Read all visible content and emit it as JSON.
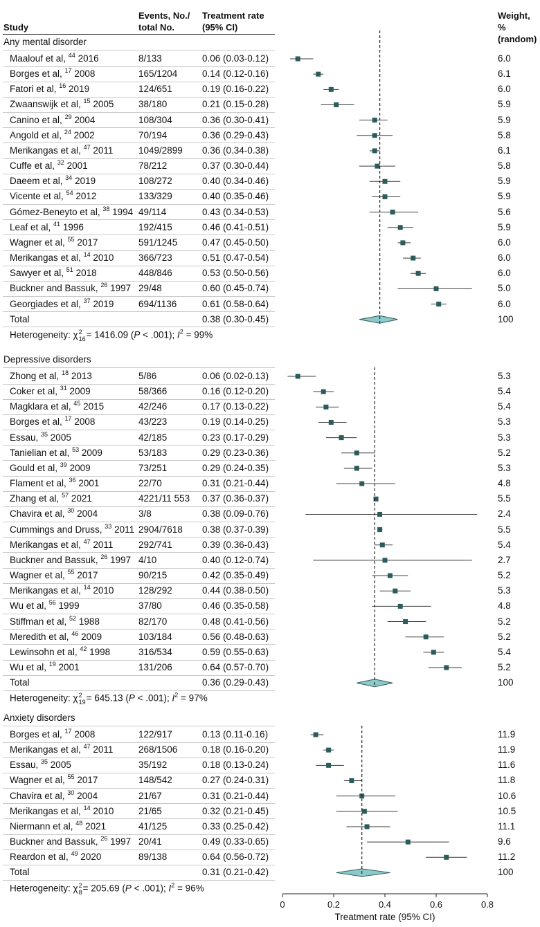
{
  "header": {
    "study": "Study",
    "events_line1": "Events, No./",
    "events_line2": "total No.",
    "rate_line1": "Treatment rate",
    "rate_line2": "(95% CI)",
    "weight_line1": "Weight, %",
    "weight_line2": "(random)"
  },
  "chart_data": {
    "type": "forest",
    "xlabel": "Treatment rate (95% CI)",
    "xlim": [
      0,
      0.8
    ],
    "xticks": [
      0,
      0.2,
      0.4,
      0.6,
      0.8
    ],
    "xtick_labels": [
      "0",
      "0.2",
      "0.4",
      "0.6",
      "0.8"
    ],
    "colors": {
      "marker": "#2b5b5b",
      "diamond_fill": "#8ec9c9",
      "diamond_stroke": "#2b5b5b"
    },
    "sections": [
      {
        "title": "Any mental disorder",
        "studies": [
          {
            "author": "Maalouf et al,",
            "ref": "44",
            "year": "2016",
            "events": "8/133",
            "rate": "0.06 (0.03-0.12)",
            "est": 0.06,
            "lo": 0.03,
            "hi": 0.12,
            "weight": "6.0"
          },
          {
            "author": "Borges et al,",
            "ref": "17",
            "year": "2008",
            "events": "165/1204",
            "rate": "0.14 (0.12-0.16)",
            "est": 0.14,
            "lo": 0.12,
            "hi": 0.16,
            "weight": "6.1"
          },
          {
            "author": "Fatori et al,",
            "ref": "16",
            "year": "2019",
            "events": "124/651",
            "rate": "0.19 (0.16-0.22)",
            "est": 0.19,
            "lo": 0.16,
            "hi": 0.22,
            "weight": "6.0"
          },
          {
            "author": "Zwaanswijk et al,",
            "ref": "15",
            "year": "2005",
            "events": "38/180",
            "rate": "0.21 (0.15-0.28)",
            "est": 0.21,
            "lo": 0.15,
            "hi": 0.28,
            "weight": "5.9"
          },
          {
            "author": "Canino et al,",
            "ref": "29",
            "year": "2004",
            "events": "108/304",
            "rate": "0.36 (0.30-0.41)",
            "est": 0.36,
            "lo": 0.3,
            "hi": 0.41,
            "weight": "5.9"
          },
          {
            "author": "Angold et al,",
            "ref": "24",
            "year": "2002",
            "events": "70/194",
            "rate": "0.36 (0.29-0.43)",
            "est": 0.36,
            "lo": 0.29,
            "hi": 0.43,
            "weight": "5.8"
          },
          {
            "author": "Merikangas et al,",
            "ref": "47",
            "year": "2011",
            "events": "1049/2899",
            "rate": "0.36 (0.34-0.38)",
            "est": 0.36,
            "lo": 0.34,
            "hi": 0.38,
            "weight": "6.1"
          },
          {
            "author": "Cuffe et al,",
            "ref": "32",
            "year": "2001",
            "events": "78/212",
            "rate": "0.37 (0.30-0.44)",
            "est": 0.37,
            "lo": 0.3,
            "hi": 0.44,
            "weight": "5.8"
          },
          {
            "author": "Daeem et al,",
            "ref": "34",
            "year": "2019",
            "events": "108/272",
            "rate": "0.40 (0.34-0.46)",
            "est": 0.4,
            "lo": 0.34,
            "hi": 0.46,
            "weight": "5.9"
          },
          {
            "author": "Vicente et al,",
            "ref": "54",
            "year": "2012",
            "events": "133/329",
            "rate": "0.40 (0.35-0.46)",
            "est": 0.4,
            "lo": 0.35,
            "hi": 0.46,
            "weight": "5.9"
          },
          {
            "author": "Gómez-Beneyto et al,",
            "ref": "38",
            "year": "1994",
            "events": "49/114",
            "rate": "0.43 (0.34-0.53)",
            "est": 0.43,
            "lo": 0.34,
            "hi": 0.53,
            "weight": "5.6"
          },
          {
            "author": "Leaf et al,",
            "ref": "41",
            "year": "1996",
            "events": "192/415",
            "rate": "0.46 (0.41-0.51)",
            "est": 0.46,
            "lo": 0.41,
            "hi": 0.51,
            "weight": "5.9"
          },
          {
            "author": "Wagner et al,",
            "ref": "55",
            "year": "2017",
            "events": "591/1245",
            "rate": "0.47 (0.45-0.50)",
            "est": 0.47,
            "lo": 0.45,
            "hi": 0.5,
            "weight": "6.0"
          },
          {
            "author": "Merikangas et al,",
            "ref": "14",
            "year": "2010",
            "events": "366/723",
            "rate": "0.51 (0.47-0.54)",
            "est": 0.51,
            "lo": 0.47,
            "hi": 0.54,
            "weight": "6.0"
          },
          {
            "author": "Sawyer et al,",
            "ref": "51",
            "year": "2018",
            "events": "448/846",
            "rate": "0.53 (0.50-0.56)",
            "est": 0.53,
            "lo": 0.5,
            "hi": 0.56,
            "weight": "6.0"
          },
          {
            "author": "Buckner and Bassuk,",
            "ref": "26",
            "year": "1997",
            "events": "29/48",
            "rate": "0.60 (0.45-0.74)",
            "est": 0.6,
            "lo": 0.45,
            "hi": 0.74,
            "weight": "5.0"
          },
          {
            "author": "Georgiades et al,",
            "ref": "37",
            "year": "2019",
            "events": "694/1136",
            "rate": "0.61 (0.58-0.64)",
            "est": 0.61,
            "lo": 0.58,
            "hi": 0.64,
            "weight": "6.0"
          }
        ],
        "total": {
          "label": "Total",
          "rate": "0.38 (0.30-0.45)",
          "est": 0.38,
          "lo": 0.3,
          "hi": 0.45,
          "weight": "100"
        },
        "het": {
          "prefix": "Heterogeneity: χ",
          "sup": "2",
          "sub": "16",
          "stat": "= 1416.09 (",
          "p": "P",
          "p_rest": " < .001); ",
          "i": "I",
          "i_sup": "2",
          "i_rest": " = 99%"
        }
      },
      {
        "title": "Depressive disorders",
        "studies": [
          {
            "author": "Zhong et al,",
            "ref": "18",
            "year": "2013",
            "events": "5/86",
            "rate": "0.06 (0.02-0.13)",
            "est": 0.06,
            "lo": 0.02,
            "hi": 0.13,
            "weight": "5.3"
          },
          {
            "author": "Coker et al,",
            "ref": "31",
            "year": "2009",
            "events": "58/366",
            "rate": "0.16 (0.12-0.20)",
            "est": 0.16,
            "lo": 0.12,
            "hi": 0.2,
            "weight": "5.4"
          },
          {
            "author": "Magklara et al,",
            "ref": "45",
            "year": "2015",
            "events": "42/246",
            "rate": "0.17 (0.13-0.22)",
            "est": 0.17,
            "lo": 0.13,
            "hi": 0.22,
            "weight": "5.4"
          },
          {
            "author": "Borges et al,",
            "ref": "17",
            "year": "2008",
            "events": "43/223",
            "rate": "0.19 (0.14-0.25)",
            "est": 0.19,
            "lo": 0.14,
            "hi": 0.25,
            "weight": "5.3"
          },
          {
            "author": "Essau,",
            "ref": "35",
            "year": "2005",
            "events": "42/185",
            "rate": "0.23 (0.17-0.29)",
            "est": 0.23,
            "lo": 0.17,
            "hi": 0.29,
            "weight": "5.3"
          },
          {
            "author": "Tanielian et al,",
            "ref": "53",
            "year": "2009",
            "events": "53/183",
            "rate": "0.29 (0.23-0.36)",
            "est": 0.29,
            "lo": 0.23,
            "hi": 0.36,
            "weight": "5.2"
          },
          {
            "author": "Gould et al,",
            "ref": "39",
            "year": "2009",
            "events": "73/251",
            "rate": "0.29 (0.24-0.35)",
            "est": 0.29,
            "lo": 0.24,
            "hi": 0.35,
            "weight": "5.3"
          },
          {
            "author": "Flament et al,",
            "ref": "36",
            "year": "2001",
            "events": "22/70",
            "rate": "0.31 (0.21-0.44)",
            "est": 0.31,
            "lo": 0.21,
            "hi": 0.44,
            "weight": "4.8"
          },
          {
            "author": "Zhang et al,",
            "ref": "57",
            "year": "2021",
            "events": "4221/11 553",
            "rate": "0.37 (0.36-0.37)",
            "est": 0.365,
            "lo": 0.36,
            "hi": 0.37,
            "weight": "5.5"
          },
          {
            "author": "Chavira et al,",
            "ref": "30",
            "year": "2004",
            "events": "3/8",
            "rate": "0.38 (0.09-0.76)",
            "est": 0.38,
            "lo": 0.09,
            "hi": 0.76,
            "weight": "2.4"
          },
          {
            "author": "Cummings and Druss,",
            "ref": "33",
            "year": "2011",
            "events": "2904/7618",
            "rate": "0.38 (0.37-0.39)",
            "est": 0.38,
            "lo": 0.37,
            "hi": 0.39,
            "weight": "5.5"
          },
          {
            "author": "Merikangas et al,",
            "ref": "47",
            "year": "2011",
            "events": "292/741",
            "rate": "0.39 (0.36-0.43)",
            "est": 0.39,
            "lo": 0.36,
            "hi": 0.43,
            "weight": "5.4"
          },
          {
            "author": "Buckner and Bassuk,",
            "ref": "26",
            "year": "1997",
            "events": "4/10",
            "rate": "0.40 (0.12-0.74)",
            "est": 0.4,
            "lo": 0.12,
            "hi": 0.74,
            "weight": "2.7"
          },
          {
            "author": "Wagner et al,",
            "ref": "55",
            "year": "2017",
            "events": "90/215",
            "rate": "0.42 (0.35-0.49)",
            "est": 0.42,
            "lo": 0.35,
            "hi": 0.49,
            "weight": "5.2"
          },
          {
            "author": "Merikangas et al,",
            "ref": "14",
            "year": "2010",
            "events": "128/292",
            "rate": "0.44 (0.38-0.50)",
            "est": 0.44,
            "lo": 0.38,
            "hi": 0.5,
            "weight": "5.3"
          },
          {
            "author": "Wu et al,",
            "ref": "56",
            "year": "1999",
            "events": "37/80",
            "rate": "0.46 (0.35-0.58)",
            "est": 0.46,
            "lo": 0.35,
            "hi": 0.58,
            "weight": "4.8"
          },
          {
            "author": "Stiffman et al,",
            "ref": "52",
            "year": "1988",
            "events": "82/170",
            "rate": "0.48 (0.41-0.56)",
            "est": 0.48,
            "lo": 0.41,
            "hi": 0.56,
            "weight": "5.2"
          },
          {
            "author": "Meredith et al,",
            "ref": "46",
            "year": "2009",
            "events": "103/184",
            "rate": "0.56 (0.48-0.63)",
            "est": 0.56,
            "lo": 0.48,
            "hi": 0.63,
            "weight": "5.2"
          },
          {
            "author": "Lewinsohn et al,",
            "ref": "42",
            "year": "1998",
            "events": "316/534",
            "rate": "0.59 (0.55-0.63)",
            "est": 0.59,
            "lo": 0.55,
            "hi": 0.63,
            "weight": "5.4"
          },
          {
            "author": "Wu et al,",
            "ref": "19",
            "year": "2001",
            "events": "131/206",
            "rate": "0.64 (0.57-0.70)",
            "est": 0.64,
            "lo": 0.57,
            "hi": 0.7,
            "weight": "5.2"
          }
        ],
        "total": {
          "label": "Total",
          "rate": "0.36 (0.29-0.43)",
          "est": 0.36,
          "lo": 0.29,
          "hi": 0.43,
          "weight": "100"
        },
        "het": {
          "prefix": "Heterogeneity: χ",
          "sup": "2",
          "sub": "19",
          "stat": "= 645.13 (",
          "p": "P",
          "p_rest": " < .001); ",
          "i": "I",
          "i_sup": "2",
          "i_rest": " = 97%"
        }
      },
      {
        "title": "Anxiety disorders",
        "studies": [
          {
            "author": "Borges et al,",
            "ref": "17",
            "year": "2008",
            "events": "122/917",
            "rate": "0.13 (0.11-0.16)",
            "est": 0.13,
            "lo": 0.11,
            "hi": 0.16,
            "weight": "11.9"
          },
          {
            "author": "Merikangas et al,",
            "ref": "47",
            "year": "2011",
            "events": "268/1506",
            "rate": "0.18 (0.16-0.20)",
            "est": 0.18,
            "lo": 0.16,
            "hi": 0.2,
            "weight": "11.9"
          },
          {
            "author": "Essau,",
            "ref": "35",
            "year": "2005",
            "events": "35/192",
            "rate": "0.18 (0.13-0.24)",
            "est": 0.18,
            "lo": 0.13,
            "hi": 0.24,
            "weight": "11.6"
          },
          {
            "author": "Wagner et al,",
            "ref": "55",
            "year": "2017",
            "events": "148/542",
            "rate": "0.27 (0.24-0.31)",
            "est": 0.27,
            "lo": 0.24,
            "hi": 0.31,
            "weight": "11.8"
          },
          {
            "author": "Chavira et al,",
            "ref": "30",
            "year": "2004",
            "events": "21/67",
            "rate": "0.31 (0.21-0.44)",
            "est": 0.31,
            "lo": 0.21,
            "hi": 0.44,
            "weight": "10.6"
          },
          {
            "author": "Merikangas et al,",
            "ref": "14",
            "year": "2010",
            "events": "21/65",
            "rate": "0.32 (0.21-0.45)",
            "est": 0.32,
            "lo": 0.21,
            "hi": 0.45,
            "weight": "10.5"
          },
          {
            "author": "Niermann et al,",
            "ref": "48",
            "year": "2021",
            "events": "41/125",
            "rate": "0.33 (0.25-0.42)",
            "est": 0.33,
            "lo": 0.25,
            "hi": 0.42,
            "weight": "11.1"
          },
          {
            "author": "Buckner and Bassuk,",
            "ref": "26",
            "year": "1997",
            "events": "20/41",
            "rate": "0.49 (0.33-0.65)",
            "est": 0.49,
            "lo": 0.33,
            "hi": 0.65,
            "weight": "9.6"
          },
          {
            "author": "Reardon et al,",
            "ref": "49",
            "year": "2020",
            "events": "89/138",
            "rate": "0.64 (0.56-0.72)",
            "est": 0.64,
            "lo": 0.56,
            "hi": 0.72,
            "weight": "11.2"
          }
        ],
        "total": {
          "label": "Total",
          "rate": "0.31 (0.21-0.42)",
          "est": 0.31,
          "lo": 0.21,
          "hi": 0.42,
          "weight": "100"
        },
        "het": {
          "prefix": "Heterogeneity: χ",
          "sup": "2",
          "sub": "8",
          "stat": "= 205.69 (",
          "p": "P",
          "p_rest": " < .001); ",
          "i": "I",
          "i_sup": "2",
          "i_rest": " = 96%"
        }
      }
    ]
  }
}
